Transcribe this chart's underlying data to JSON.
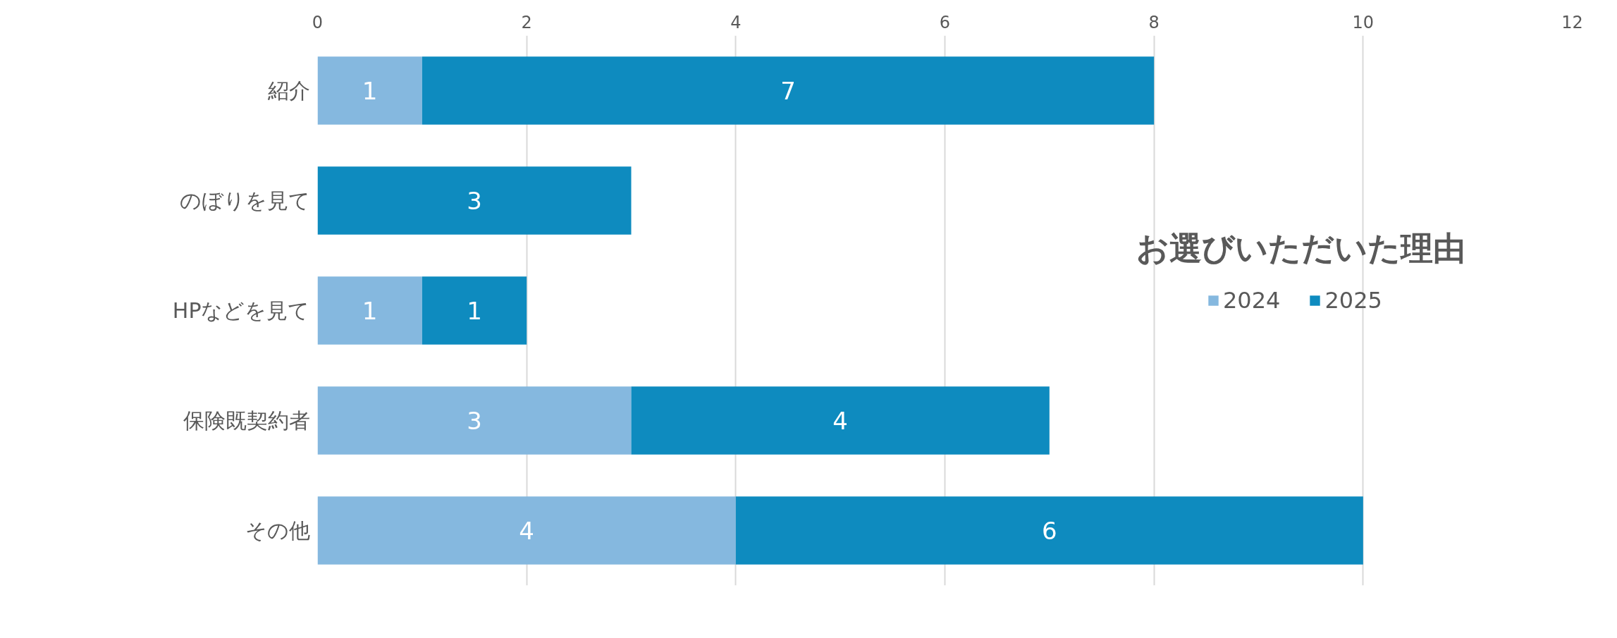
{
  "chart_data": {
    "type": "bar",
    "orientation": "horizontal",
    "stacked": true,
    "title": "お選びいただいた理由",
    "categories": [
      "紹介",
      "のぼりを見て",
      "HPなどを見て",
      "保険既契約者",
      "その他"
    ],
    "series": [
      {
        "name": "2024",
        "color": "#85b8df",
        "values": [
          1,
          0,
          1,
          3,
          4
        ],
        "value_labels": [
          "1",
          null,
          "1",
          "3",
          "4"
        ]
      },
      {
        "name": "2025",
        "color": "#0e8bbf",
        "values": [
          7,
          3,
          1,
          4,
          6
        ],
        "value_labels": [
          "7",
          "3",
          "1",
          "4",
          "6"
        ]
      }
    ],
    "xlim": [
      0,
      12
    ],
    "xticks": [
      0,
      2,
      4,
      6,
      8,
      10,
      12
    ],
    "grid": "x",
    "legend": "right"
  }
}
